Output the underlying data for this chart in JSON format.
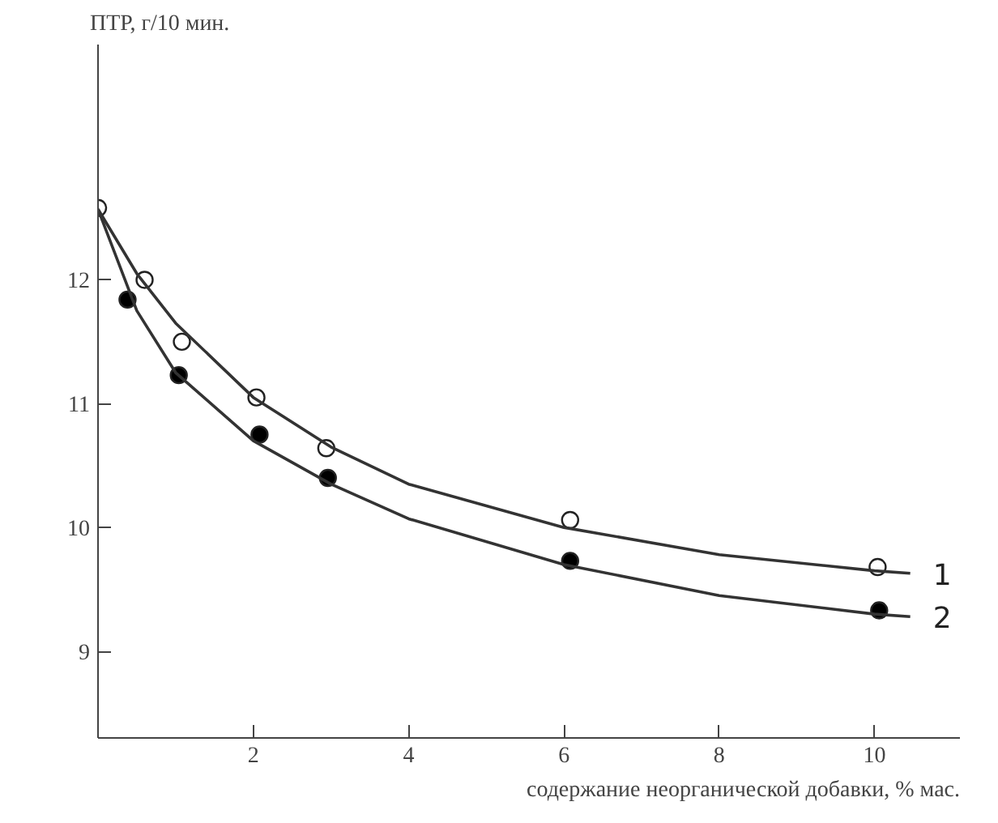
{
  "chart_data": {
    "type": "scatter",
    "ylabel": "ПТР, г/10 мин.",
    "xlabel": "содержание неорганической добавки, % мас.",
    "xlim": [
      0,
      11.1
    ],
    "ylim": [
      8.3,
      13.9
    ],
    "xticks": [
      2,
      4,
      6,
      8,
      10
    ],
    "yticks": [
      9,
      10,
      11,
      12
    ],
    "grid": false,
    "marker": "circle",
    "series": [
      {
        "color": "#ffffff",
        "x": [
          0,
          0.6,
          1.08,
          2.04,
          2.94,
          6.08,
          10.04
        ],
        "values": [
          12.58,
          12.0,
          11.5,
          11.05,
          10.64,
          10.06,
          9.68
        ]
      },
      {
        "color": "#000000",
        "x": [
          0.38,
          1.04,
          2.08,
          2.96,
          6.08,
          10.06
        ],
        "values": [
          11.84,
          11.23,
          10.75,
          10.4,
          9.73,
          9.33
        ]
      },
      {
        "type": "line",
        "name": "1",
        "color": "#333333",
        "marker": "none",
        "x": [
          0,
          0.5,
          1,
          2,
          3,
          4,
          6,
          8,
          10,
          10.46
        ],
        "values": [
          12.57,
          12.05,
          11.65,
          11.05,
          10.65,
          10.35,
          10.0,
          9.78,
          9.65,
          9.63
        ]
      },
      {
        "type": "line",
        "name": "2",
        "color": "#333333",
        "marker": "none",
        "x": [
          0,
          0.5,
          1,
          2,
          3,
          4,
          6,
          8,
          10,
          10.46
        ],
        "values": [
          12.57,
          11.75,
          11.25,
          10.7,
          10.35,
          10.07,
          9.7,
          9.45,
          9.3,
          9.28
        ]
      }
    ]
  }
}
